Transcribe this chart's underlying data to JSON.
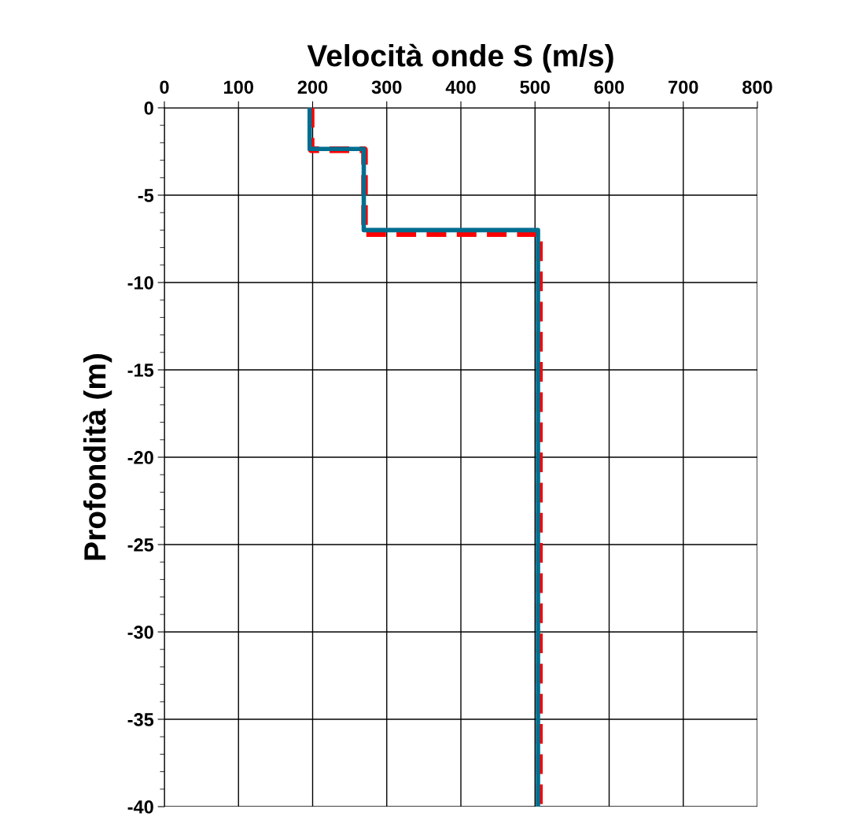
{
  "chart_data": {
    "type": "line",
    "title": "Velocità onde S (m/s)",
    "ylabel": "Profondità (m)",
    "xlim": [
      0,
      800
    ],
    "xticks": [
      0,
      100,
      200,
      300,
      400,
      500,
      600,
      700,
      800
    ],
    "ylim": [
      -40,
      0
    ],
    "yticks": [
      0,
      -5,
      -10,
      -15,
      -20,
      -25,
      -30,
      -35,
      -40
    ],
    "grid": true,
    "legend": false,
    "marker": "none",
    "series": [
      {
        "color": "#ff0000",
        "line_style": "dashed",
        "x": [
          198,
          198,
          270,
          270,
          506,
          506
        ],
        "values": [
          0,
          -2.4,
          -2.4,
          -7.2,
          -7.2,
          -40
        ]
      },
      {
        "color": "#006e8f",
        "line_style": "solid",
        "x": [
          196,
          196,
          269,
          269,
          504,
          504
        ],
        "values": [
          0,
          -2.35,
          -2.35,
          -7.0,
          -7.0,
          -40
        ]
      }
    ]
  }
}
